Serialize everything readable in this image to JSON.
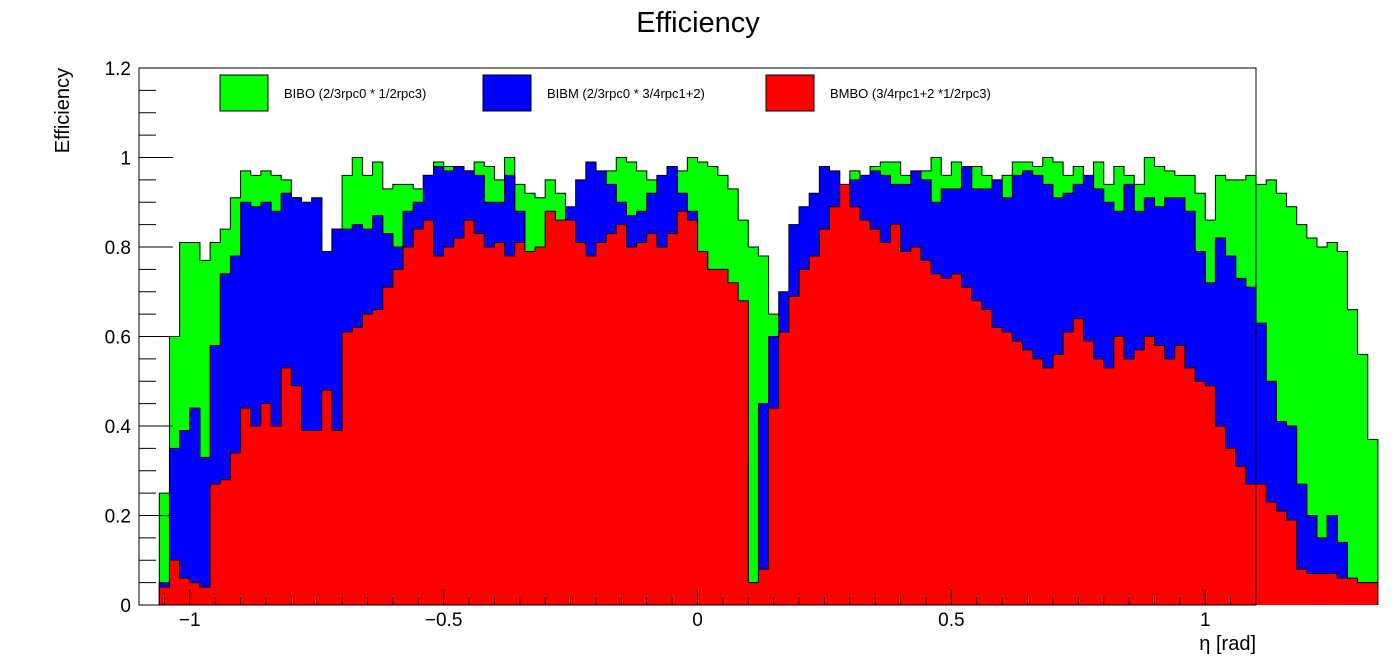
{
  "chart_data": {
    "type": "bar",
    "title": "Efficiency",
    "xlabel": "η [rad]",
    "ylabel": "Efficiency",
    "xlim": [
      -1.1,
      1.1
    ],
    "ylim": [
      0,
      1.2
    ],
    "bin_width": 0.02,
    "x_start": -1.06,
    "x_ticks": [
      -1,
      -0.5,
      0,
      0.5,
      1
    ],
    "x_tick_labels": [
      "−1",
      "−0.5",
      "0",
      "0.5",
      "1"
    ],
    "y_ticks": [
      0,
      0.2,
      0.4,
      0.6,
      0.8,
      1,
      1.2
    ],
    "y_tick_labels": [
      "0",
      "0.2",
      "0.4",
      "0.6",
      "0.8",
      "1",
      "1.2"
    ],
    "legend_position": "top",
    "grid": false,
    "series": [
      {
        "name": "BIBO (2/3rpc0 * 1/2rpc3)",
        "color": "#00ff00",
        "values": [
          0.25,
          0.6,
          0.81,
          0.81,
          0.77,
          0.81,
          0.84,
          0.91,
          0.97,
          0.96,
          0.97,
          0.96,
          0.95,
          0.91,
          0.88,
          0.78,
          0.73,
          0.84,
          0.96,
          1.0,
          0.96,
          0.99,
          0.93,
          0.94,
          0.94,
          0.93,
          0.96,
          0.99,
          0.98,
          0.95,
          0.97,
          0.99,
          0.98,
          0.95,
          1.0,
          0.94,
          0.92,
          0.91,
          0.95,
          0.92,
          0.81,
          0.81,
          0.92,
          0.96,
          0.97,
          1.0,
          0.99,
          0.97,
          0.95,
          0.93,
          0.93,
          0.97,
          1.0,
          0.99,
          0.98,
          0.96,
          0.93,
          0.86,
          0.8,
          0.78,
          0.65,
          0.62,
          0.35,
          0.56,
          0.63,
          0.72,
          0.81,
          0.92,
          0.97,
          0.96,
          0.98,
          0.99,
          0.99,
          0.96,
          0.95,
          0.97,
          1.0,
          0.96,
          0.99,
          0.97,
          0.98,
          0.96,
          0.95,
          0.96,
          0.99,
          0.99,
          0.98,
          1.0,
          0.99,
          0.96,
          0.98,
          0.93,
          0.99,
          0.94,
          0.98,
          0.96,
          0.94,
          1.0,
          0.98,
          0.97,
          0.96,
          0.96,
          0.92,
          0.86,
          0.96,
          0.95,
          0.95,
          0.96,
          0.94,
          0.95,
          0.92,
          0.89,
          0.85,
          0.82,
          0.8,
          0.81,
          0.79,
          0.66,
          0.56,
          0.37
        ]
      },
      {
        "name": "BIBM (2/3rpc0 * 3/4rpc1+2)",
        "color": "#0000ff",
        "values": [
          0.05,
          0.35,
          0.39,
          0.44,
          0.33,
          0.58,
          0.74,
          0.78,
          0.9,
          0.89,
          0.9,
          0.88,
          0.92,
          0.91,
          0.9,
          0.91,
          0.79,
          0.84,
          0.84,
          0.85,
          0.84,
          0.87,
          0.83,
          0.8,
          0.88,
          0.9,
          0.96,
          0.98,
          0.97,
          0.98,
          0.97,
          0.96,
          0.9,
          0.9,
          0.96,
          0.88,
          0.78,
          0.77,
          0.78,
          0.84,
          0.89,
          0.95,
          0.99,
          0.97,
          0.94,
          0.9,
          0.87,
          0.88,
          0.92,
          0.96,
          0.98,
          0.92,
          0.88,
          0.79,
          0.5,
          0.48,
          0.6,
          0.33,
          0.05,
          0.45,
          0.6,
          0.7,
          0.85,
          0.89,
          0.92,
          0.98,
          0.97,
          0.93,
          0.95,
          0.96,
          0.97,
          0.96,
          0.94,
          0.94,
          0.97,
          0.95,
          0.9,
          0.93,
          0.93,
          0.98,
          0.93,
          0.93,
          0.95,
          0.91,
          0.96,
          0.97,
          0.96,
          0.94,
          0.91,
          0.92,
          0.94,
          0.96,
          0.93,
          0.9,
          0.88,
          0.94,
          0.88,
          0.91,
          0.89,
          0.91,
          0.91,
          0.88,
          0.79,
          0.72,
          0.82,
          0.78,
          0.73,
          0.71,
          0.63,
          0.5,
          0.41,
          0.4,
          0.27,
          0.2,
          0.15,
          0.2,
          0.14,
          0.05,
          0.05,
          0.05
        ]
      },
      {
        "name": "BMBO (3/4rpc1+2 *1/2rpc3)",
        "color": "#ff0000",
        "values": [
          0.04,
          0.1,
          0.06,
          0.05,
          0.04,
          0.27,
          0.28,
          0.34,
          0.44,
          0.4,
          0.45,
          0.4,
          0.53,
          0.49,
          0.39,
          0.39,
          0.48,
          0.39,
          0.61,
          0.62,
          0.65,
          0.66,
          0.71,
          0.75,
          0.8,
          0.84,
          0.86,
          0.78,
          0.8,
          0.82,
          0.86,
          0.83,
          0.8,
          0.81,
          0.78,
          0.81,
          0.79,
          0.8,
          0.88,
          0.86,
          0.86,
          0.81,
          0.78,
          0.81,
          0.83,
          0.85,
          0.8,
          0.81,
          0.83,
          0.8,
          0.83,
          0.88,
          0.86,
          0.79,
          0.75,
          0.75,
          0.72,
          0.68,
          0.05,
          0.08,
          0.44,
          0.61,
          0.69,
          0.75,
          0.78,
          0.84,
          0.89,
          0.94,
          0.89,
          0.86,
          0.84,
          0.81,
          0.85,
          0.79,
          0.8,
          0.77,
          0.74,
          0.73,
          0.74,
          0.71,
          0.68,
          0.66,
          0.62,
          0.61,
          0.59,
          0.57,
          0.55,
          0.53,
          0.56,
          0.61,
          0.64,
          0.59,
          0.55,
          0.53,
          0.6,
          0.55,
          0.57,
          0.6,
          0.58,
          0.55,
          0.58,
          0.53,
          0.5,
          0.49,
          0.4,
          0.35,
          0.31,
          0.27,
          0.27,
          0.23,
          0.21,
          0.19,
          0.08,
          0.07,
          0.07,
          0.07,
          0.06,
          0.06,
          0.05,
          0.05
        ]
      }
    ]
  }
}
